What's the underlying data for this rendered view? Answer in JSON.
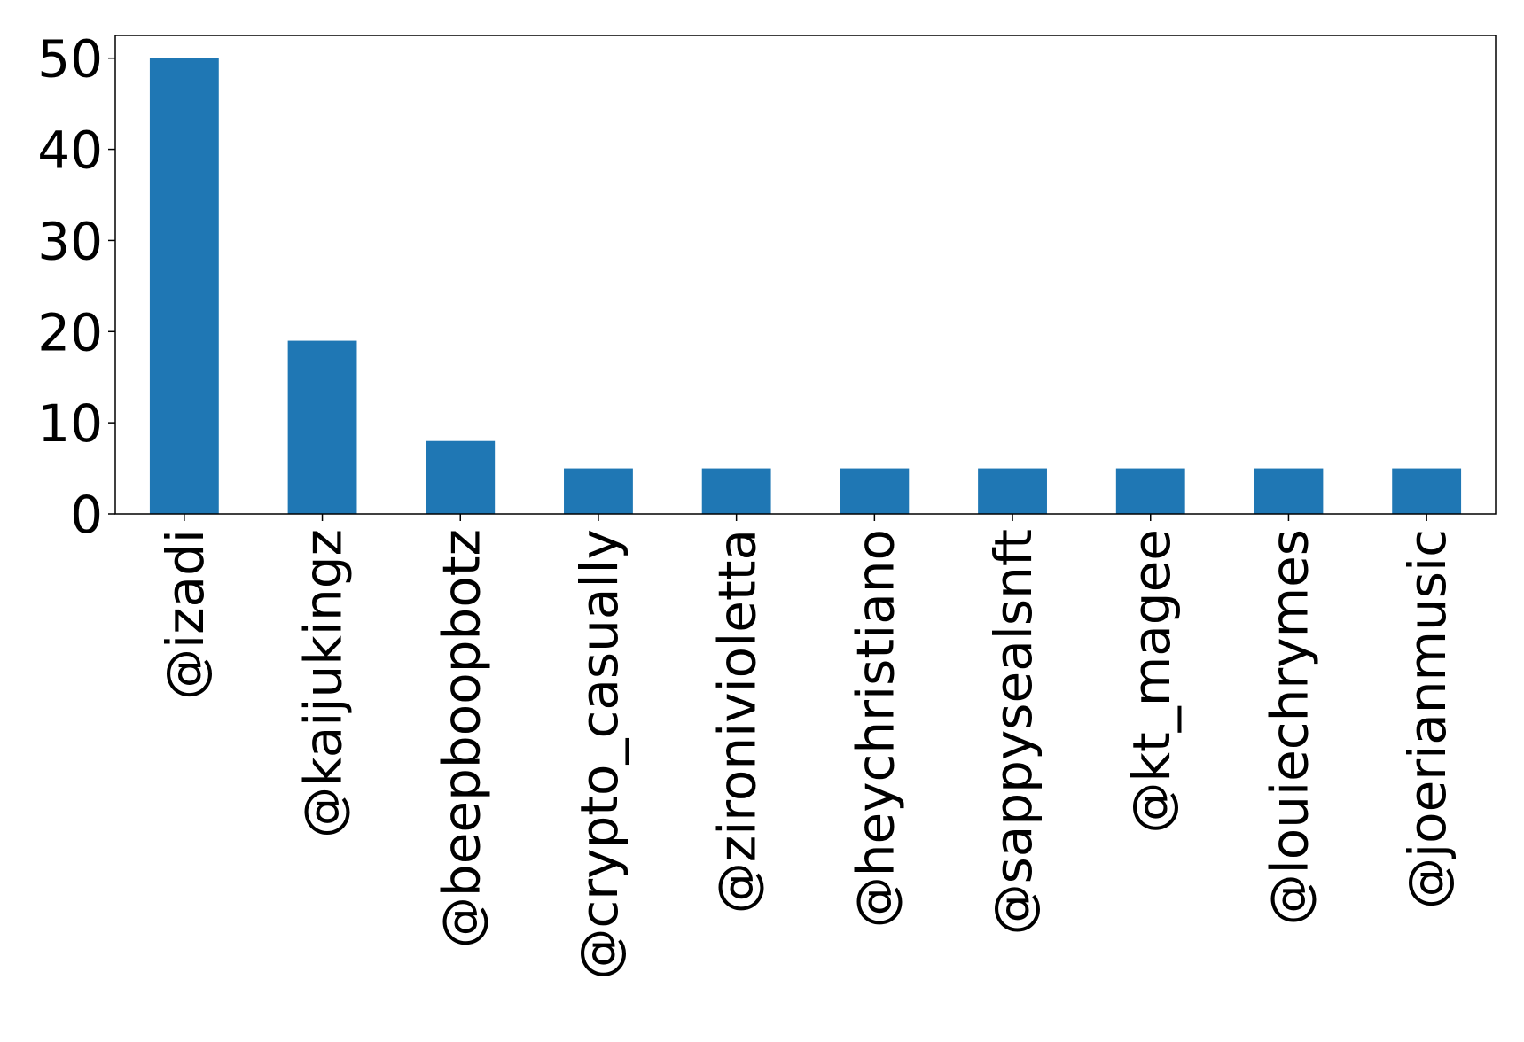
{
  "chart_data": {
    "type": "bar",
    "title": "",
    "xlabel": "",
    "ylabel": "",
    "categories": [
      "@izadi",
      "@kaijukingz",
      "@beepboopbotz",
      "@crypto_casually",
      "@zironivioletta",
      "@heychristiano",
      "@sappysealsnft",
      "@kt_magee",
      "@louiechrymes",
      "@joerianmusic"
    ],
    "values": [
      50,
      19,
      8,
      5,
      5,
      5,
      5,
      5,
      5,
      5
    ],
    "ylim": [
      0,
      52.5
    ],
    "yticks": [
      0,
      10,
      20,
      30,
      40,
      50
    ],
    "xtick_rotation": 90,
    "grid": false,
    "legend": "none",
    "bar_color": "#1f77b4"
  }
}
